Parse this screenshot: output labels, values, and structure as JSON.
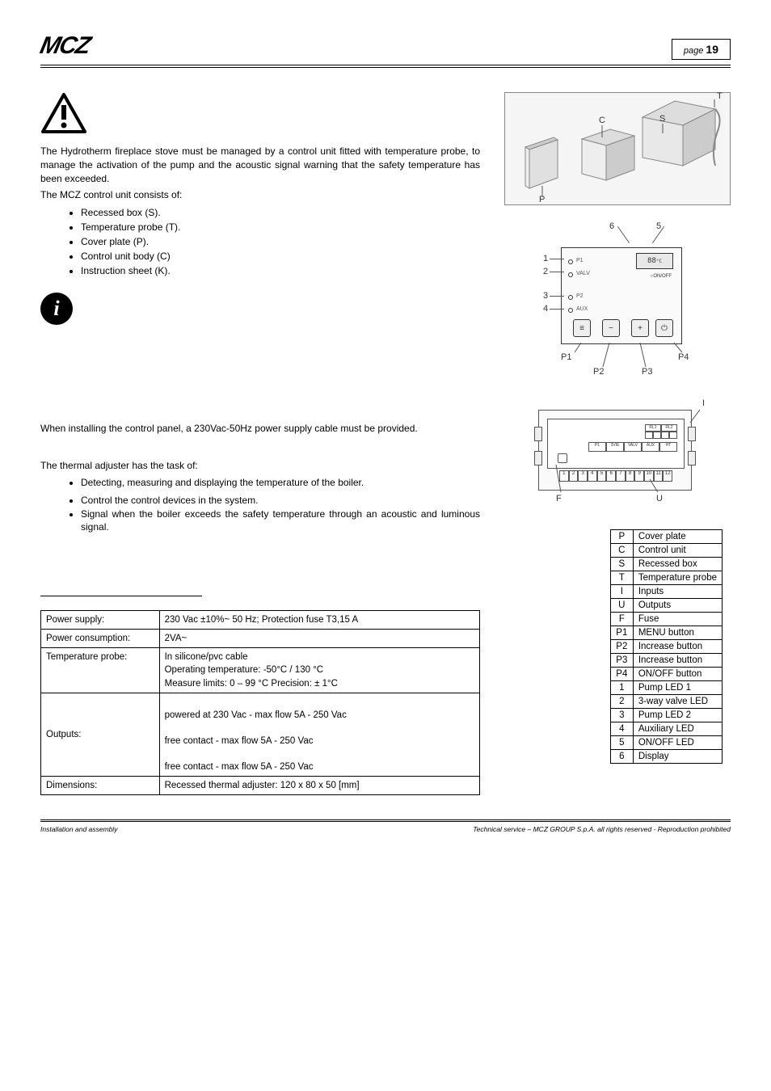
{
  "header": {
    "logo_text": "MCZ",
    "page_label": "page",
    "page_number": "19"
  },
  "intro": {
    "p1": "The Hydrotherm fireplace stove must be managed by a control unit fitted with temperature probe, to manage the activation of the pump and the acoustic signal warning that the safety temperature has been exceeded.",
    "p2": "The MCZ control unit consists of:",
    "bullets": [
      "Recessed box (S).",
      "Temperature probe (T).",
      "Cover plate (P).",
      "Control unit body (C)",
      "Instruction sheet (K)."
    ],
    "p3": "When installing the control panel, a 230Vac-50Hz power supply cable must be provided.",
    "p4": "The thermal adjuster has the task of:",
    "bullets2": [
      "Detecting, measuring and displaying the temperature of the boiler.",
      "Control the control devices in the system.",
      "Signal when the boiler exceeds the safety temperature through an acoustic and luminous signal."
    ]
  },
  "specs": {
    "rows": [
      [
        "Power supply:",
        "230 Vac ±10%~ 50 Hz; Protection fuse T3,15 A"
      ],
      [
        "Power consumption:",
        "2VA~"
      ],
      [
        "Temperature probe:",
        "In silicone/pvc cable\nOperating temperature: -50°C / 130 °C\nMeasure limits: 0 – 99 °C          Precision: ± 1°C"
      ],
      [
        "Outputs:",
        "\npowered at 230 Vac - max flow 5A - 250 Vac\n\nfree contact - max flow 5A - 250 Vac\n\nfree contact - max flow 5A - 250 Vac"
      ],
      [
        "Dimensions:",
        "Recessed thermal adjuster: 120 x 80 x 50 [mm]"
      ]
    ]
  },
  "figure1": {
    "labels": {
      "P": "P",
      "C": "C",
      "S": "S",
      "T": "T"
    }
  },
  "figure2": {
    "display_value": "88",
    "on_off_text": "ON/OFF",
    "top_numbers": {
      "6": "6",
      "5": "5"
    },
    "side_numbers": {
      "1": "1",
      "2": "2",
      "3": "3",
      "4": "4"
    },
    "bottom_labels": {
      "P1": "P1",
      "P2": "P2",
      "P3": "P3",
      "P4": "P4"
    }
  },
  "figure3": {
    "labels": {
      "I": "I",
      "F": "F",
      "U": "U"
    }
  },
  "legend": {
    "rows": [
      [
        "P",
        "Cover plate"
      ],
      [
        "C",
        "Control unit"
      ],
      [
        "S",
        "Recessed box"
      ],
      [
        "T",
        "Temperature probe"
      ],
      [
        "I",
        "Inputs"
      ],
      [
        "U",
        "Outputs"
      ],
      [
        "F",
        "Fuse"
      ],
      [
        "P1",
        "MENU button"
      ],
      [
        "P2",
        "Increase button"
      ],
      [
        "P3",
        "Increase button"
      ],
      [
        "P4",
        "ON/OFF button"
      ],
      [
        "1",
        "Pump LED 1"
      ],
      [
        "2",
        "3-way valve LED"
      ],
      [
        "3",
        "Pump LED 2"
      ],
      [
        "4",
        "Auxiliary LED"
      ],
      [
        "5",
        "ON/OFF LED"
      ],
      [
        "6",
        "Display"
      ]
    ]
  },
  "footer": {
    "left": "Installation and assembly",
    "right": "Technical service – MCZ GROUP S.p.A. all rights reserved - Reproduction prohibited"
  },
  "colors": {
    "text": "#000000",
    "border": "#000000",
    "figure_bg": "#f5f5f5"
  }
}
